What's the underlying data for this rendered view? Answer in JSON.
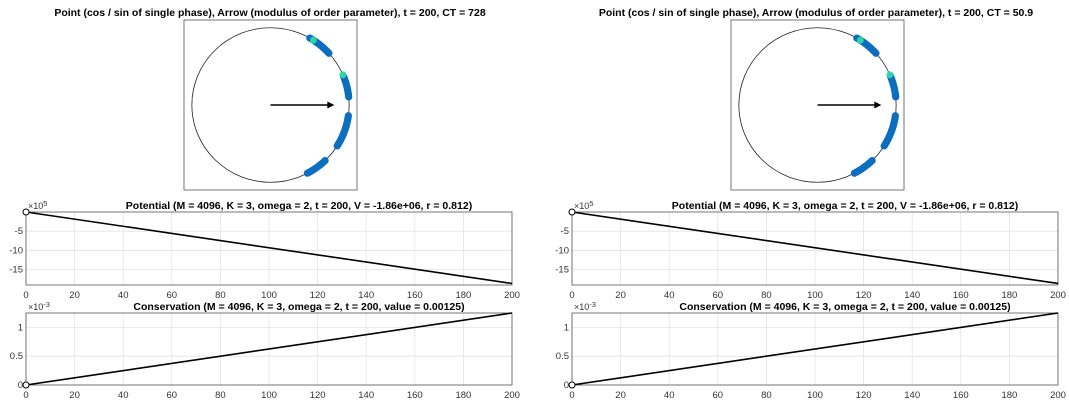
{
  "panels": [
    {
      "circle_plot": {
        "title": "Point (cos / sin of single phase), Arrow (modulus of order parameter), t = 200, CT = 728",
        "type": "scatter",
        "xlim": [
          -1.1,
          1.1
        ],
        "ylim": [
          -1.1,
          1.1
        ],
        "arrow": {
          "dx": 0.812,
          "dy": 0.0
        },
        "point_clusters_deg": [
          {
            "from": -62,
            "to": -46
          },
          {
            "from": -32,
            "to": -8
          },
          {
            "from": 6,
            "to": 22
          },
          {
            "from": 42,
            "to": 60
          }
        ],
        "highlight_points_deg": [
          57,
          23
        ],
        "point_color": "#0d6ebf",
        "highlight_color": "#2ed3a7"
      },
      "potential": {
        "type": "line",
        "title": "Potential (M = 4096, K = 3, omega = 2, t = 200, V = -1.86e+06, r = 0.812)",
        "x": [
          0,
          200
        ],
        "y": [
          0,
          -1860000
        ],
        "xlim": [
          0,
          200
        ],
        "ylim": [
          -1900000,
          0
        ],
        "xticks": [
          0,
          20,
          40,
          60,
          80,
          100,
          120,
          140,
          160,
          180,
          200
        ],
        "yticks": [
          -1500000,
          -1000000,
          -500000
        ],
        "ytick_labels": [
          "-15",
          "-10",
          "-5"
        ],
        "y_exponent": "×10",
        "y_exponent_power": "5",
        "origin_marker": true
      },
      "conservation": {
        "type": "line",
        "title": "Conservation (M = 4096, K = 3, omega = 2, t = 200, value = 0.00125)",
        "x": [
          0,
          200
        ],
        "y": [
          0,
          0.00125
        ],
        "xlim": [
          0,
          200
        ],
        "ylim": [
          0,
          0.00125
        ],
        "xticks": [
          0,
          20,
          40,
          60,
          80,
          100,
          120,
          140,
          160,
          180,
          200
        ],
        "yticks": [
          0,
          0.0005,
          0.001
        ],
        "ytick_labels": [
          "0",
          "0.5",
          "1"
        ],
        "y_exponent": "×10",
        "y_exponent_power": "-3",
        "origin_marker": true
      }
    },
    {
      "circle_plot": {
        "title": "Point (cos / sin of single phase), Arrow (modulus of order parameter), t = 200, CT = 50.9",
        "type": "scatter",
        "xlim": [
          -1.1,
          1.1
        ],
        "ylim": [
          -1.1,
          1.1
        ],
        "arrow": {
          "dx": 0.812,
          "dy": 0.0
        },
        "point_clusters_deg": [
          {
            "from": -62,
            "to": -46
          },
          {
            "from": -32,
            "to": -8
          },
          {
            "from": 6,
            "to": 22
          },
          {
            "from": 42,
            "to": 60
          }
        ],
        "highlight_points_deg": [
          57,
          23
        ],
        "point_color": "#0d6ebf",
        "highlight_color": "#2ed3a7"
      },
      "potential": {
        "type": "line",
        "title": "Potential (M = 4096, K = 3, omega = 2, t = 200, V = -1.86e+06, r = 0.812)",
        "x": [
          0,
          200
        ],
        "y": [
          0,
          -1860000
        ],
        "xlim": [
          0,
          200
        ],
        "ylim": [
          -1900000,
          0
        ],
        "xticks": [
          0,
          20,
          40,
          60,
          80,
          100,
          120,
          140,
          160,
          180,
          200
        ],
        "yticks": [
          -1500000,
          -1000000,
          -500000
        ],
        "ytick_labels": [
          "-15",
          "-10",
          "-5"
        ],
        "y_exponent": "×10",
        "y_exponent_power": "5",
        "origin_marker": true
      },
      "conservation": {
        "type": "line",
        "title": "Conservation (M = 4096, K = 3, omega = 2, t = 200, value = 0.00125)",
        "x": [
          0,
          200
        ],
        "y": [
          0,
          0.00125
        ],
        "xlim": [
          0,
          200
        ],
        "ylim": [
          0,
          0.00125
        ],
        "xticks": [
          0,
          20,
          40,
          60,
          80,
          100,
          120,
          140,
          160,
          180,
          200
        ],
        "yticks": [
          0,
          0.0005,
          0.001
        ],
        "ytick_labels": [
          "0",
          "0.5",
          "1"
        ],
        "y_exponent": "×10",
        "y_exponent_power": "-3",
        "origin_marker": true
      }
    }
  ]
}
